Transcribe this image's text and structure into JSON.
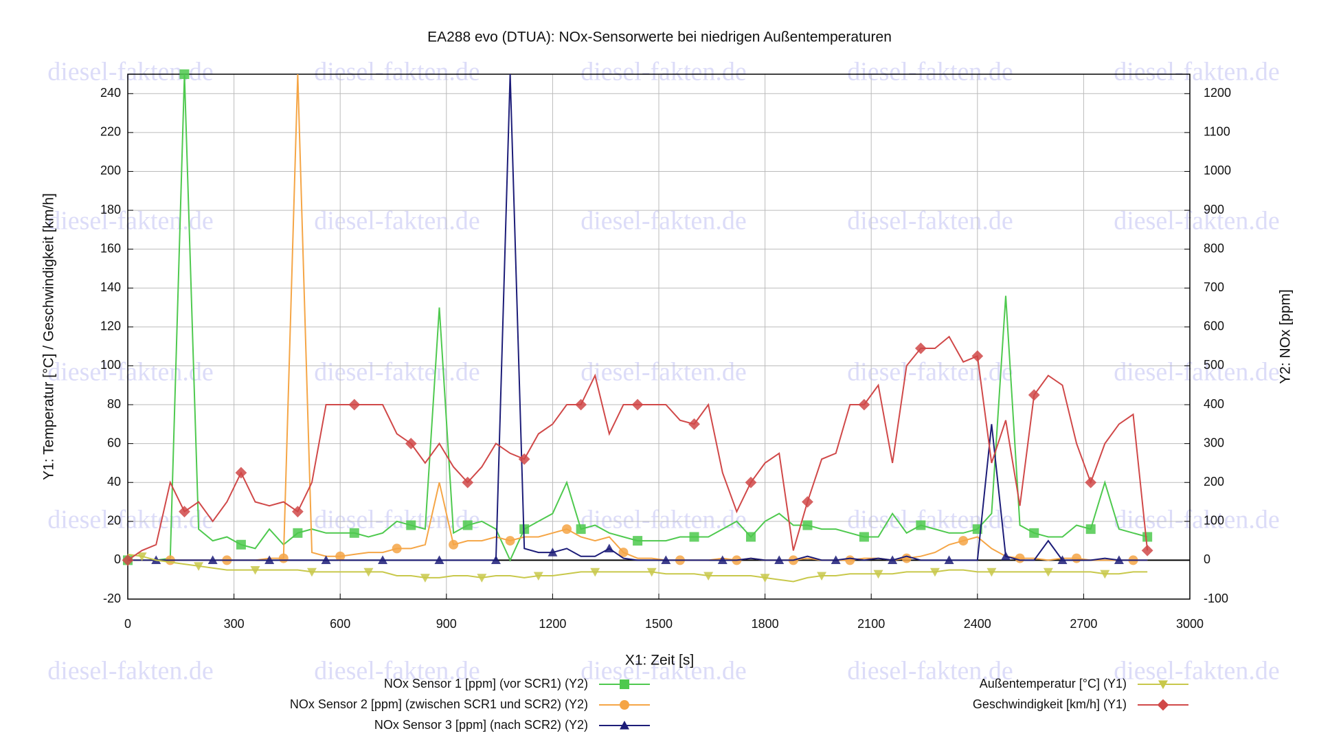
{
  "watermark": "diesel-fakten.de",
  "chart_data": {
    "type": "line",
    "title": "EA288 evo (DTUA): NOx-Sensorwerte bei niedrigen Außentemperaturen",
    "x_label": "X1: Zeit [s]",
    "y_label": "Y1: Temperatur [°C] / Geschwindigkeit [km/h]",
    "y2_label": "Y2: NOx [ppm]",
    "grid": true,
    "legend": "bottom",
    "xlim": [
      0,
      3000
    ],
    "xticks": [
      0,
      300,
      600,
      900,
      1200,
      1500,
      1800,
      2100,
      2400,
      2700,
      3000
    ],
    "ylim": [
      -20,
      250
    ],
    "yticks": [
      -20,
      0,
      20,
      40,
      60,
      80,
      100,
      120,
      140,
      160,
      180,
      200,
      220,
      240
    ],
    "y2lim": [
      -100,
      1250
    ],
    "y2ticks": [
      -100,
      0,
      100,
      200,
      300,
      400,
      500,
      600,
      700,
      800,
      900,
      1000,
      1100,
      1200
    ],
    "x": [
      0,
      40,
      80,
      120,
      160,
      200,
      240,
      280,
      320,
      360,
      400,
      440,
      480,
      520,
      560,
      600,
      640,
      680,
      720,
      760,
      800,
      840,
      880,
      920,
      960,
      1000,
      1040,
      1080,
      1120,
      1160,
      1200,
      1240,
      1280,
      1320,
      1360,
      1400,
      1440,
      1480,
      1520,
      1560,
      1600,
      1640,
      1680,
      1720,
      1760,
      1800,
      1840,
      1880,
      1920,
      1960,
      2000,
      2040,
      2080,
      2120,
      2160,
      2200,
      2240,
      2280,
      2320,
      2360,
      2400,
      2440,
      2480,
      2520,
      2560,
      2600,
      2640,
      2680,
      2720,
      2760,
      2800,
      2840,
      2880
    ],
    "series": [
      {
        "name": "NOx Sensor 1 [ppm] (vor SCR1) (Y2)",
        "color": "#4ec94e",
        "marker": "square",
        "axis": "y2",
        "values": [
          0,
          0,
          0,
          5,
          1250,
          80,
          50,
          60,
          40,
          30,
          80,
          40,
          70,
          80,
          70,
          70,
          70,
          60,
          70,
          100,
          90,
          80,
          650,
          70,
          90,
          100,
          80,
          0,
          80,
          100,
          120,
          200,
          80,
          90,
          70,
          60,
          50,
          50,
          50,
          60,
          60,
          60,
          80,
          100,
          60,
          100,
          120,
          90,
          90,
          80,
          80,
          70,
          60,
          60,
          120,
          70,
          90,
          80,
          70,
          70,
          80,
          120,
          680,
          90,
          70,
          60,
          60,
          90,
          80,
          200,
          80,
          70,
          60
        ]
      },
      {
        "name": "NOx Sensor 2 [ppm] (zwischen SCR1 und SCR2) (Y2)",
        "color": "#f5a545",
        "marker": "circle",
        "axis": "y2",
        "values": [
          0,
          0,
          0,
          0,
          0,
          0,
          0,
          0,
          0,
          0,
          5,
          5,
          1250,
          20,
          10,
          10,
          15,
          20,
          20,
          30,
          30,
          40,
          200,
          40,
          50,
          50,
          60,
          50,
          60,
          60,
          70,
          80,
          60,
          50,
          60,
          20,
          5,
          5,
          0,
          0,
          0,
          0,
          5,
          0,
          5,
          0,
          0,
          0,
          5,
          0,
          0,
          0,
          5,
          5,
          0,
          5,
          10,
          20,
          40,
          50,
          60,
          30,
          10,
          5,
          5,
          0,
          5,
          5,
          0,
          0,
          0,
          0,
          0
        ]
      },
      {
        "name": "NOx Sensor 3 [ppm] (nach SCR2) (Y2)",
        "color": "#1c1c78",
        "marker": "triangle",
        "axis": "y2",
        "values": [
          0,
          0,
          0,
          0,
          0,
          0,
          0,
          0,
          0,
          0,
          0,
          0,
          0,
          0,
          0,
          0,
          0,
          0,
          0,
          0,
          0,
          0,
          0,
          0,
          0,
          0,
          0,
          1250,
          30,
          20,
          20,
          30,
          10,
          10,
          30,
          5,
          0,
          0,
          0,
          0,
          0,
          0,
          0,
          0,
          5,
          0,
          0,
          0,
          10,
          0,
          0,
          5,
          0,
          5,
          0,
          10,
          0,
          0,
          0,
          0,
          0,
          350,
          10,
          0,
          0,
          50,
          0,
          0,
          0,
          5,
          0,
          0,
          0
        ]
      },
      {
        "name": "Außentemperatur [°C] (Y1)",
        "color": "#c8c84a",
        "marker": "triangle-down",
        "axis": "y",
        "values": [
          3,
          2,
          0,
          -1,
          -2,
          -3,
          -4,
          -5,
          -5,
          -5,
          -5,
          -5,
          -5,
          -6,
          -6,
          -6,
          -6,
          -6,
          -6,
          -8,
          -8,
          -9,
          -9,
          -8,
          -8,
          -9,
          -8,
          -8,
          -9,
          -8,
          -8,
          -7,
          -6,
          -6,
          -6,
          -6,
          -6,
          -6,
          -7,
          -7,
          -7,
          -8,
          -8,
          -8,
          -8,
          -9,
          -10,
          -11,
          -9,
          -8,
          -8,
          -7,
          -7,
          -7,
          -7,
          -6,
          -6,
          -6,
          -5,
          -5,
          -6,
          -6,
          -6,
          -6,
          -6,
          -6,
          -6,
          -6,
          -6,
          -7,
          -7,
          -6,
          -6
        ]
      },
      {
        "name": "Geschwindigkeit [km/h] (Y1)",
        "color": "#d04848",
        "marker": "diamond",
        "axis": "y",
        "values": [
          0,
          5,
          8,
          40,
          25,
          30,
          20,
          30,
          45,
          30,
          28,
          30,
          25,
          40,
          80,
          80,
          80,
          80,
          80,
          65,
          60,
          50,
          60,
          48,
          40,
          48,
          60,
          55,
          52,
          65,
          70,
          80,
          80,
          95,
          65,
          80,
          80,
          80,
          80,
          72,
          70,
          80,
          45,
          25,
          40,
          50,
          55,
          5,
          30,
          52,
          55,
          80,
          80,
          90,
          50,
          100,
          109,
          109,
          115,
          102,
          105,
          50,
          72,
          28,
          85,
          95,
          90,
          60,
          40,
          60,
          70,
          75,
          5
        ]
      }
    ]
  }
}
